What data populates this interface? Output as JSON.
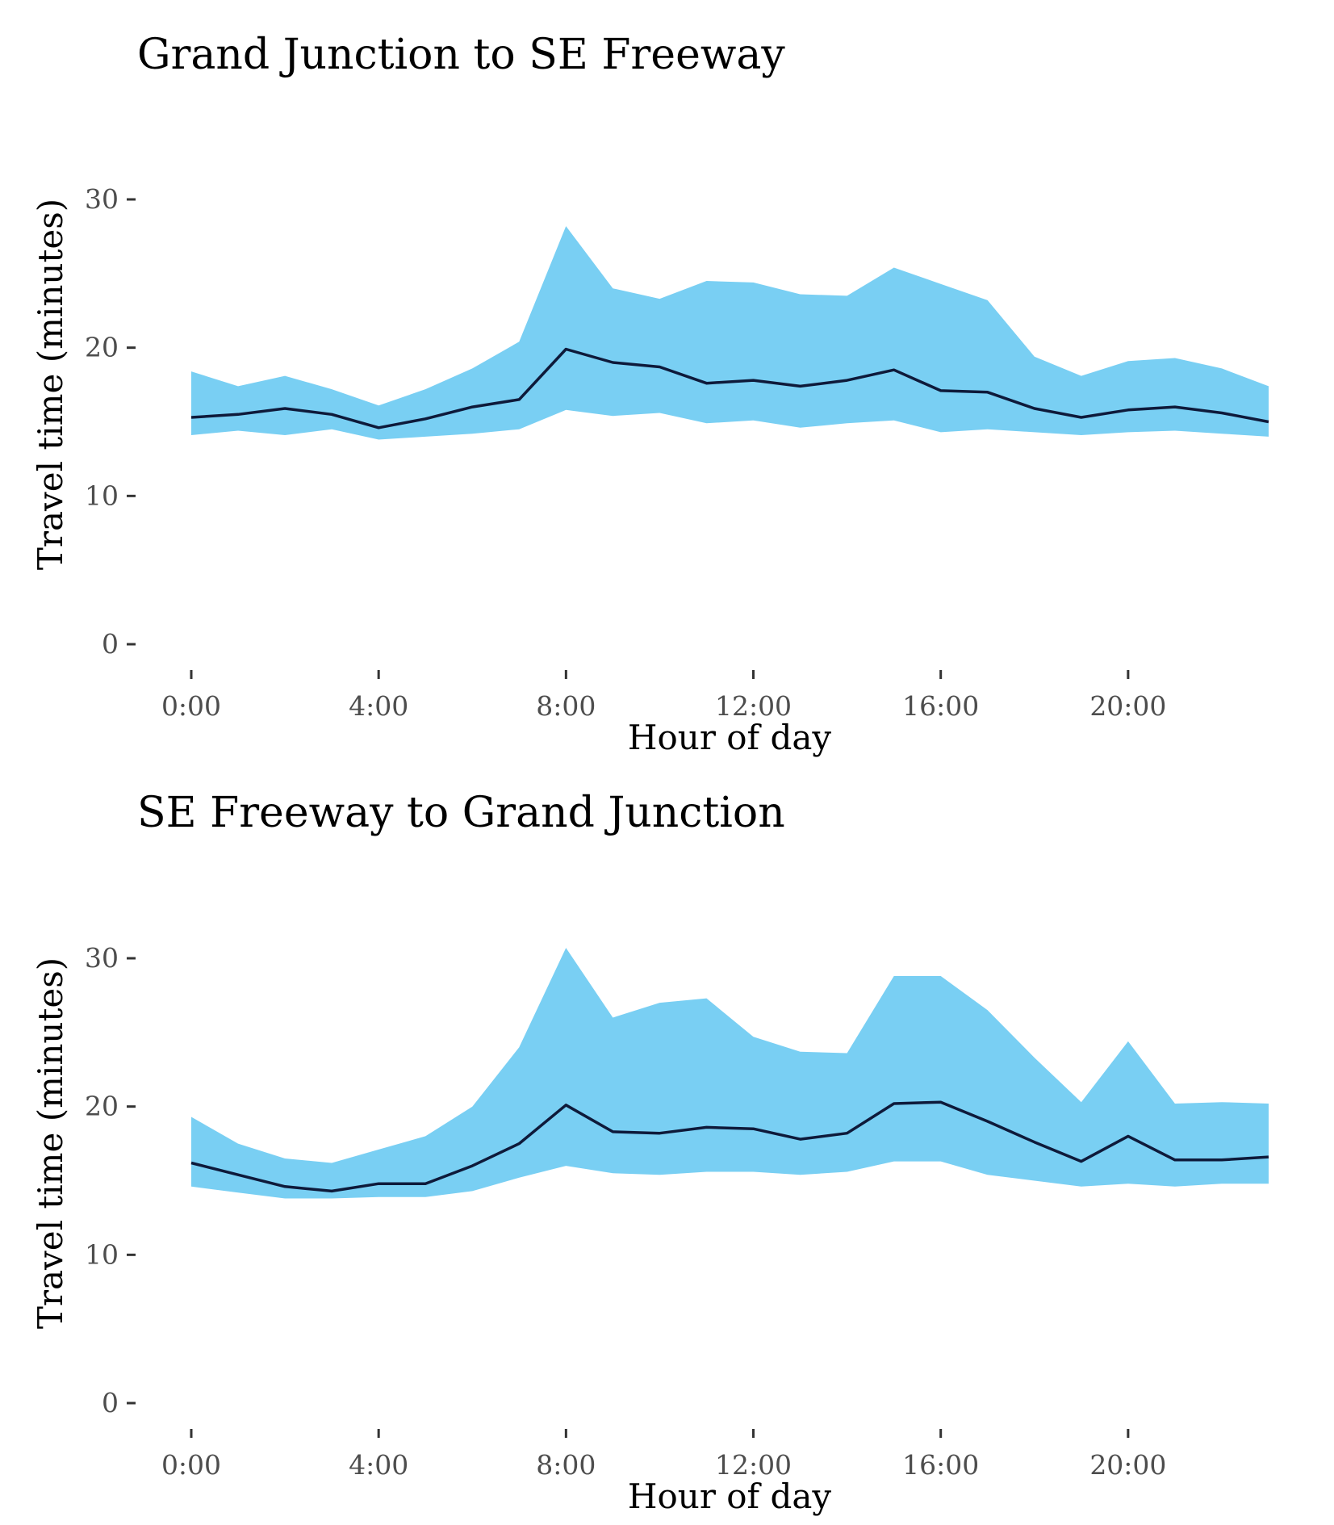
{
  "colors": {
    "band": "#79CFF3",
    "line": "#0E1A3A"
  },
  "chart_data": [
    {
      "type": "area",
      "title": "Grand Junction to SE Freeway",
      "xlabel": "Hour of day",
      "ylabel": "Travel time (minutes)",
      "ylim": [
        0,
        33
      ],
      "xlim": [
        0,
        23
      ],
      "grid": false,
      "yticks": [
        0,
        10,
        20,
        30
      ],
      "xticks": [
        0,
        4,
        8,
        12,
        16,
        20
      ],
      "xtick_labels": [
        "0:00",
        "4:00",
        "8:00",
        "12:00",
        "16:00",
        "20:00"
      ],
      "x": [
        0,
        1,
        2,
        3,
        4,
        5,
        6,
        7,
        8,
        9,
        10,
        11,
        12,
        13,
        14,
        15,
        16,
        17,
        18,
        19,
        20,
        21,
        22,
        23
      ],
      "series": [
        {
          "role": "upper",
          "values": [
            18.4,
            17.4,
            18.1,
            17.2,
            16.1,
            17.2,
            18.6,
            20.4,
            28.2,
            24.0,
            23.3,
            24.5,
            24.4,
            23.6,
            23.5,
            25.4,
            24.3,
            23.2,
            19.4,
            18.1,
            19.1,
            19.3,
            18.6,
            17.4
          ]
        },
        {
          "role": "mean",
          "values": [
            15.3,
            15.5,
            15.9,
            15.5,
            14.6,
            15.2,
            16.0,
            16.5,
            19.9,
            19.0,
            18.7,
            17.6,
            17.8,
            17.4,
            17.8,
            18.5,
            17.1,
            17.0,
            15.9,
            15.3,
            15.8,
            16.0,
            15.6,
            15.0
          ]
        },
        {
          "role": "lower",
          "values": [
            14.1,
            14.4,
            14.1,
            14.5,
            13.8,
            14.0,
            14.2,
            14.5,
            15.8,
            15.4,
            15.6,
            14.9,
            15.1,
            14.6,
            14.9,
            15.1,
            14.3,
            14.5,
            14.3,
            14.1,
            14.3,
            14.4,
            14.2,
            14.0
          ]
        }
      ]
    },
    {
      "type": "area",
      "title": "SE Freeway to Grand Junction",
      "xlabel": "Hour of day",
      "ylabel": "Travel time (minutes)",
      "ylim": [
        0,
        33
      ],
      "xlim": [
        0,
        23
      ],
      "grid": false,
      "yticks": [
        0,
        10,
        20,
        30
      ],
      "xticks": [
        0,
        4,
        8,
        12,
        16,
        20
      ],
      "xtick_labels": [
        "0:00",
        "4:00",
        "8:00",
        "12:00",
        "16:00",
        "20:00"
      ],
      "x": [
        0,
        1,
        2,
        3,
        4,
        5,
        6,
        7,
        8,
        9,
        10,
        11,
        12,
        13,
        14,
        15,
        16,
        17,
        18,
        19,
        20,
        21,
        22,
        23
      ],
      "series": [
        {
          "role": "upper",
          "values": [
            19.3,
            17.5,
            16.5,
            16.2,
            17.1,
            18.0,
            20.0,
            24.0,
            30.7,
            26.0,
            27.0,
            27.3,
            24.7,
            23.7,
            23.6,
            28.8,
            28.8,
            26.5,
            23.3,
            20.3,
            24.4,
            20.2,
            20.3,
            20.2
          ]
        },
        {
          "role": "mean",
          "values": [
            16.2,
            15.4,
            14.6,
            14.3,
            14.8,
            14.8,
            16.0,
            17.5,
            20.1,
            18.3,
            18.2,
            18.6,
            18.5,
            17.8,
            18.2,
            20.2,
            20.3,
            19.0,
            17.6,
            16.3,
            18.0,
            16.4,
            16.4,
            16.6
          ]
        },
        {
          "role": "lower",
          "values": [
            14.6,
            14.2,
            13.8,
            13.8,
            13.9,
            13.9,
            14.3,
            15.2,
            16.0,
            15.5,
            15.4,
            15.6,
            15.6,
            15.4,
            15.6,
            16.3,
            16.3,
            15.4,
            15.0,
            14.6,
            14.8,
            14.6,
            14.8,
            14.8
          ]
        }
      ]
    }
  ]
}
